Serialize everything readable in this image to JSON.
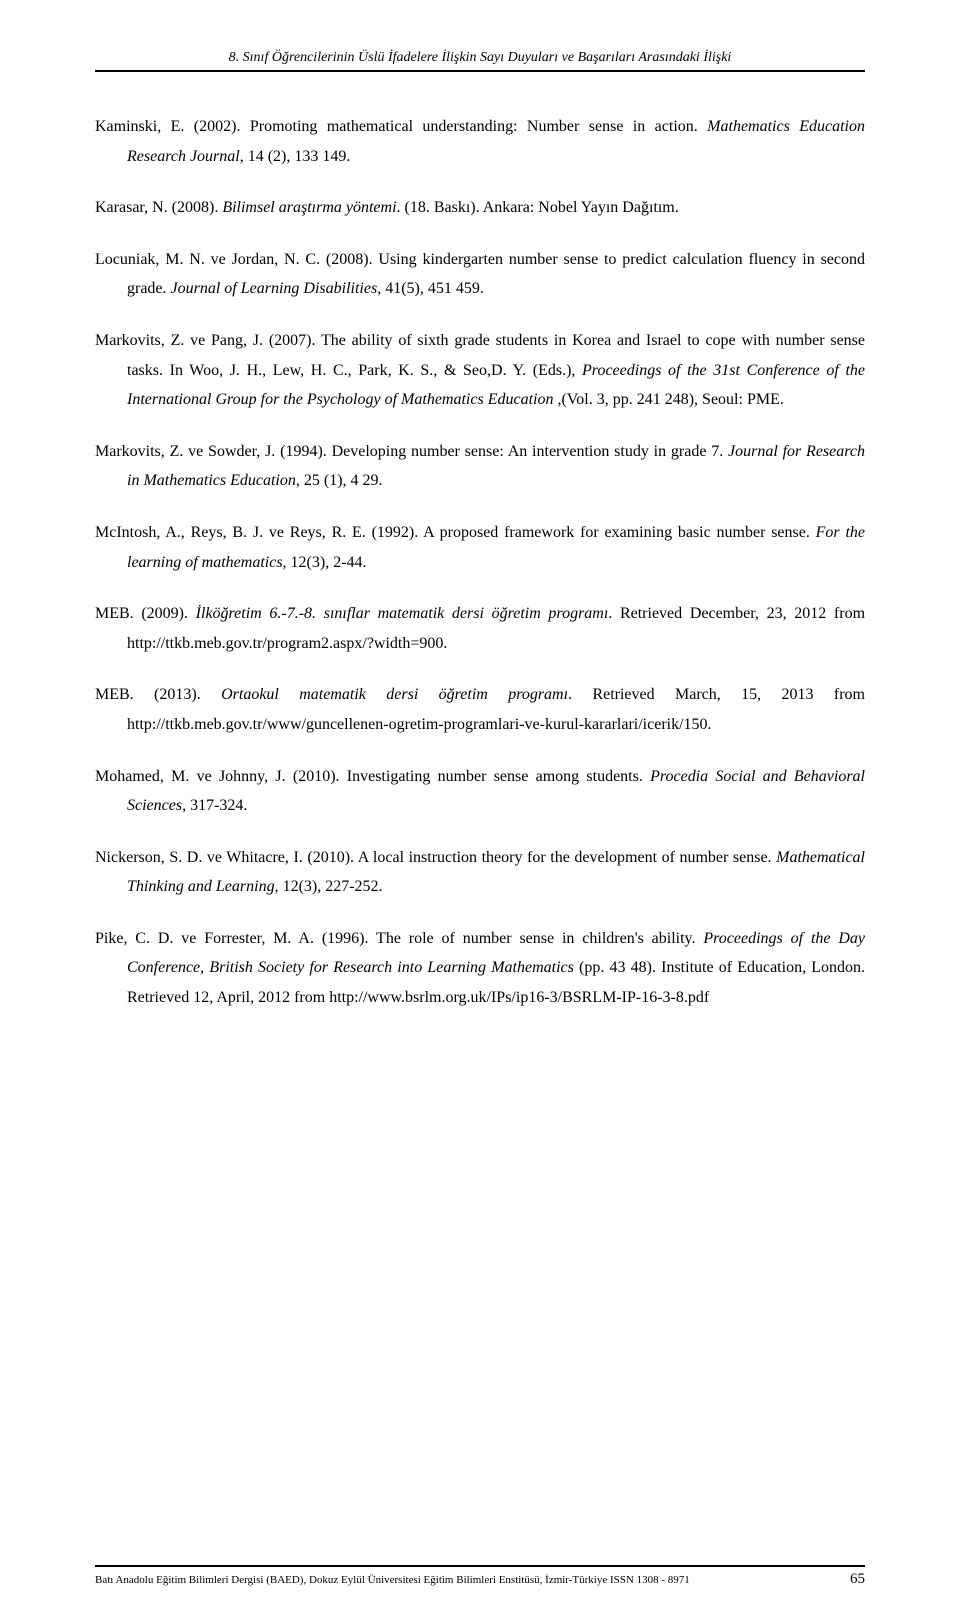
{
  "running_head": "8. Sınıf Öğrencilerinin Üslü İfadelere İlişkin Sayı Duyuları ve Başarıları Arasındaki İlişki",
  "refs": [
    {
      "pre": "Kaminski, E. (2002). Promoting mathematical understanding: Number sense in action. ",
      "it": "Mathematics Education Research Journal",
      "post": ", 14 (2), 133 149."
    },
    {
      "pre": "Karasar, N. (2008). ",
      "it": "Bilimsel araştırma yöntemi",
      "post": ". (18. Baskı). Ankara: Nobel Yayın Dağıtım."
    },
    {
      "pre": "Locuniak, M. N. ve Jordan, N. C. (2008). Using kindergarten number sense to predict calculation fluency in second grade. ",
      "it": "Journal of Learning Disabilities",
      "post": ", 41(5), 451 459."
    },
    {
      "pre": "Markovits, Z. ve Pang, J. (2007). The ability of sixth grade students in Korea and Israel  to cope with number sense tasks. In Woo, J. H., Lew, H. C., Park, K. S., & Seo,D. Y. (Eds.), ",
      "it": "Proceedings of the 31st Conference of the International Group for  the Psychology of Mathematics Education",
      "post": " ,(Vol. 3, pp. 241 248), Seoul: PME."
    },
    {
      "pre": "Markovits, Z. ve Sowder, J. (1994). Developing number sense: An intervention study in grade 7. ",
      "it": "Journal for Research in Mathematics Education",
      "post": ", 25 (1), 4 29."
    },
    {
      "pre": "McIntosh, A., Reys, B. J. ve Reys, R. E. (1992). A proposed framework for examining basic number sense. ",
      "it": "For the learning of mathematics",
      "post": ", 12(3), 2-44."
    },
    {
      "pre": "MEB. (2009). ",
      "it": "İlköğretim 6.-7.-8. sınıflar matematik dersi öğretim programı",
      "post": ". Retrieved December, 23, 2012 from http://ttkb.meb.gov.tr/program2.aspx/?width=900."
    },
    {
      "pre": "MEB. (2013). ",
      "it": "Ortaokul matematik dersi öğretim programı",
      "post": ". Retrieved March, 15, 2013 from http://ttkb.meb.gov.tr/www/guncellenen-ogretim-programlari-ve-kurul-kararlari/icerik/150."
    },
    {
      "pre": "Mohamed, M. ve Johnny, J. (2010). Investigating number sense among students. ",
      "it": "Procedia Social and Behavioral Sciences",
      "post": ", 317-324."
    },
    {
      "pre": "Nickerson, S. D. ve Whitacre, I. (2010). A local instruction theory for the development of number sense. ",
      "it": "Mathematical Thinking and Learning",
      "post": ", 12(3), 227-252."
    },
    {
      "pre": "Pike, C. D. ve Forrester, M. A. (1996). The role of number sense in children's ability. ",
      "it": "Proceedings of the Day Conference, British Society for Research into Learning Mathematics",
      "post": " (pp. 43 48). Institute of Education, London. Retrieved 12, April, 2012 from http://www.bsrlm.org.uk/IPs/ip16-3/BSRLM-IP-16-3-8.pdf"
    }
  ],
  "footer": {
    "journal": "Batı Anadolu Eğitim Bilimleri Dergisi (BAED), Dokuz Eylül Üniversitesi Eğitim Bilimleri Enstitüsü, İzmir-Türkiye  ISSN 1308  - 8971",
    "page": "65"
  }
}
